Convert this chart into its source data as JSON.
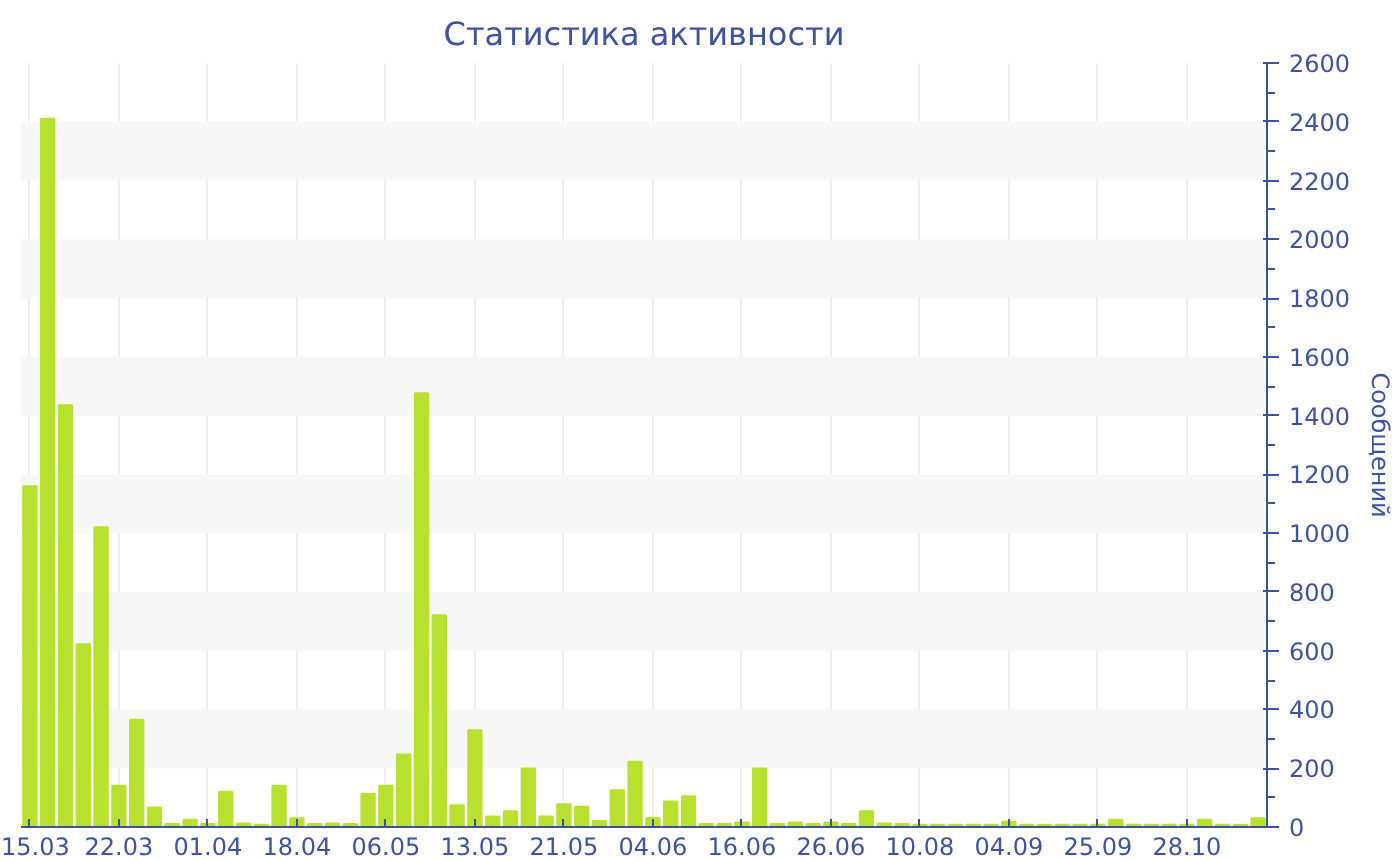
{
  "chart_data": {
    "type": "bar",
    "title": "Статистика активности",
    "ylabel": "Сообщений",
    "categories": [
      "15.03",
      null,
      null,
      null,
      null,
      "22.03",
      null,
      null,
      null,
      null,
      "01.04",
      null,
      null,
      null,
      null,
      "18.04",
      null,
      null,
      null,
      null,
      "06.05",
      null,
      null,
      null,
      null,
      "13.05",
      null,
      null,
      null,
      null,
      "21.05",
      null,
      null,
      null,
      null,
      "04.06",
      null,
      null,
      null,
      null,
      "16.06",
      null,
      null,
      null,
      null,
      "26.06",
      null,
      null,
      null,
      null,
      "10.08",
      null,
      null,
      null,
      null,
      "04.09",
      null,
      null,
      null,
      null,
      "25.09",
      null,
      null,
      null,
      null,
      "28.10",
      null,
      null,
      null,
      null
    ],
    "values": [
      1160,
      2410,
      1435,
      622,
      1020,
      140,
      365,
      66,
      10,
      25,
      10,
      120,
      12,
      8,
      140,
      30,
      10,
      12,
      10,
      112,
      140,
      247,
      1476,
      721,
      74,
      329,
      36,
      54,
      199,
      36,
      77,
      69,
      20,
      125,
      222,
      31,
      87,
      105,
      10,
      10,
      15,
      199,
      10,
      15,
      10,
      15,
      10,
      54,
      12,
      10,
      8,
      8,
      8,
      8,
      8,
      18,
      8,
      8,
      8,
      8,
      8,
      25,
      8,
      8,
      8,
      8,
      25,
      8,
      8,
      30
    ],
    "color": "#b8e02e",
    "ylim": [
      0,
      2600
    ],
    "yticks": [
      0,
      200,
      400,
      600,
      800,
      1000,
      1200,
      1400,
      1600,
      1800,
      2000,
      2200,
      2400,
      2600
    ],
    "grid": true
  }
}
